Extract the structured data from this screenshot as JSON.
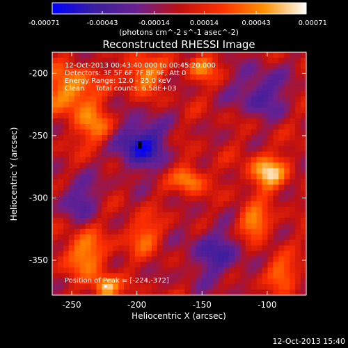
{
  "window_title": "Reconstructed RHESSI Image",
  "timestamp_footer": "12-Oct-2013 15:40",
  "colorbar": {
    "ticks": [
      "-0.00071",
      "-0.00043",
      "-0.00014",
      "0.00014",
      "0.00043",
      "0.00071"
    ],
    "unit_label": "(photons cm^-2 s^-1 asec^-2)",
    "range": [
      -0.00071,
      0.00071
    ],
    "colormap": [
      "#0000ff",
      "#3a1ea0",
      "#6a2090",
      "#c01010",
      "#ff3000",
      "#ff9000",
      "#ffffff"
    ]
  },
  "chart_data": {
    "type": "heatmap",
    "title": "Reconstructed RHESSI Image",
    "xlabel": "Heliocentric X (arcsec)",
    "ylabel": "Heliocentric Y (arcsec)",
    "xlim": [
      -265,
      -70
    ],
    "ylim": [
      -378,
      -183
    ],
    "x_ticks": [
      -250,
      -200,
      -150,
      -100
    ],
    "y_ticks": [
      -200,
      -250,
      -300,
      -350
    ],
    "x_tick_labels": [
      "-250",
      "-200",
      "-150",
      "-100"
    ],
    "y_tick_labels": [
      "-200",
      "-250",
      "-300",
      "-350"
    ],
    "annotations": [
      "12-Oct-2013 00:43:40.000 to 00:45:20.000",
      "Detectors: 3F 5F 6F 7F 8F 9F, Att 0",
      "Energy Range: 12.0 - 25.0 keV",
      "Clean     Total counts: 6.58E+03"
    ],
    "peak_label": "Position of Peak = [-224,-372]",
    "peak_position": [
      -224,
      -372
    ],
    "features": [
      {
        "name": "blue-minimum",
        "x": -198,
        "y": -257,
        "sigma": 14,
        "amp": -0.85
      },
      {
        "name": "blue-lower-right",
        "x": -140,
        "y": -345,
        "sigma": 16,
        "amp": -0.5
      },
      {
        "name": "blue-right-top",
        "x": -105,
        "y": -215,
        "sigma": 14,
        "amp": -0.55
      },
      {
        "name": "blue-left-mid",
        "x": -245,
        "y": -300,
        "sigma": 12,
        "amp": -0.45
      },
      {
        "name": "red-top-left",
        "x": -250,
        "y": -215,
        "sigma": 14,
        "amp": 0.75
      },
      {
        "name": "red-top-mid",
        "x": -195,
        "y": -200,
        "sigma": 10,
        "amp": 0.7
      },
      {
        "name": "red-top-right",
        "x": -150,
        "y": -195,
        "sigma": 8,
        "amp": 0.55
      },
      {
        "name": "red-left-band",
        "x": -230,
        "y": -245,
        "sigma": 10,
        "amp": 0.6
      },
      {
        "name": "red-ring",
        "x": -160,
        "y": -285,
        "sigma": 8,
        "amp": 0.7
      },
      {
        "name": "red-right-cluster",
        "x": -100,
        "y": -280,
        "sigma": 10,
        "amp": 0.85
      },
      {
        "name": "red-right-mid",
        "x": -110,
        "y": -320,
        "sigma": 9,
        "amp": 0.7
      },
      {
        "name": "red-bottom-left",
        "x": -240,
        "y": -345,
        "sigma": 12,
        "amp": 0.65
      },
      {
        "name": "red-bottom-mid",
        "x": -195,
        "y": -330,
        "sigma": 10,
        "amp": 0.5
      },
      {
        "name": "red-bottom-right",
        "x": -90,
        "y": -360,
        "sigma": 9,
        "amp": 0.55
      },
      {
        "name": "peak",
        "x": -224,
        "y": -372,
        "sigma": 7,
        "amp": 0.85
      }
    ]
  }
}
